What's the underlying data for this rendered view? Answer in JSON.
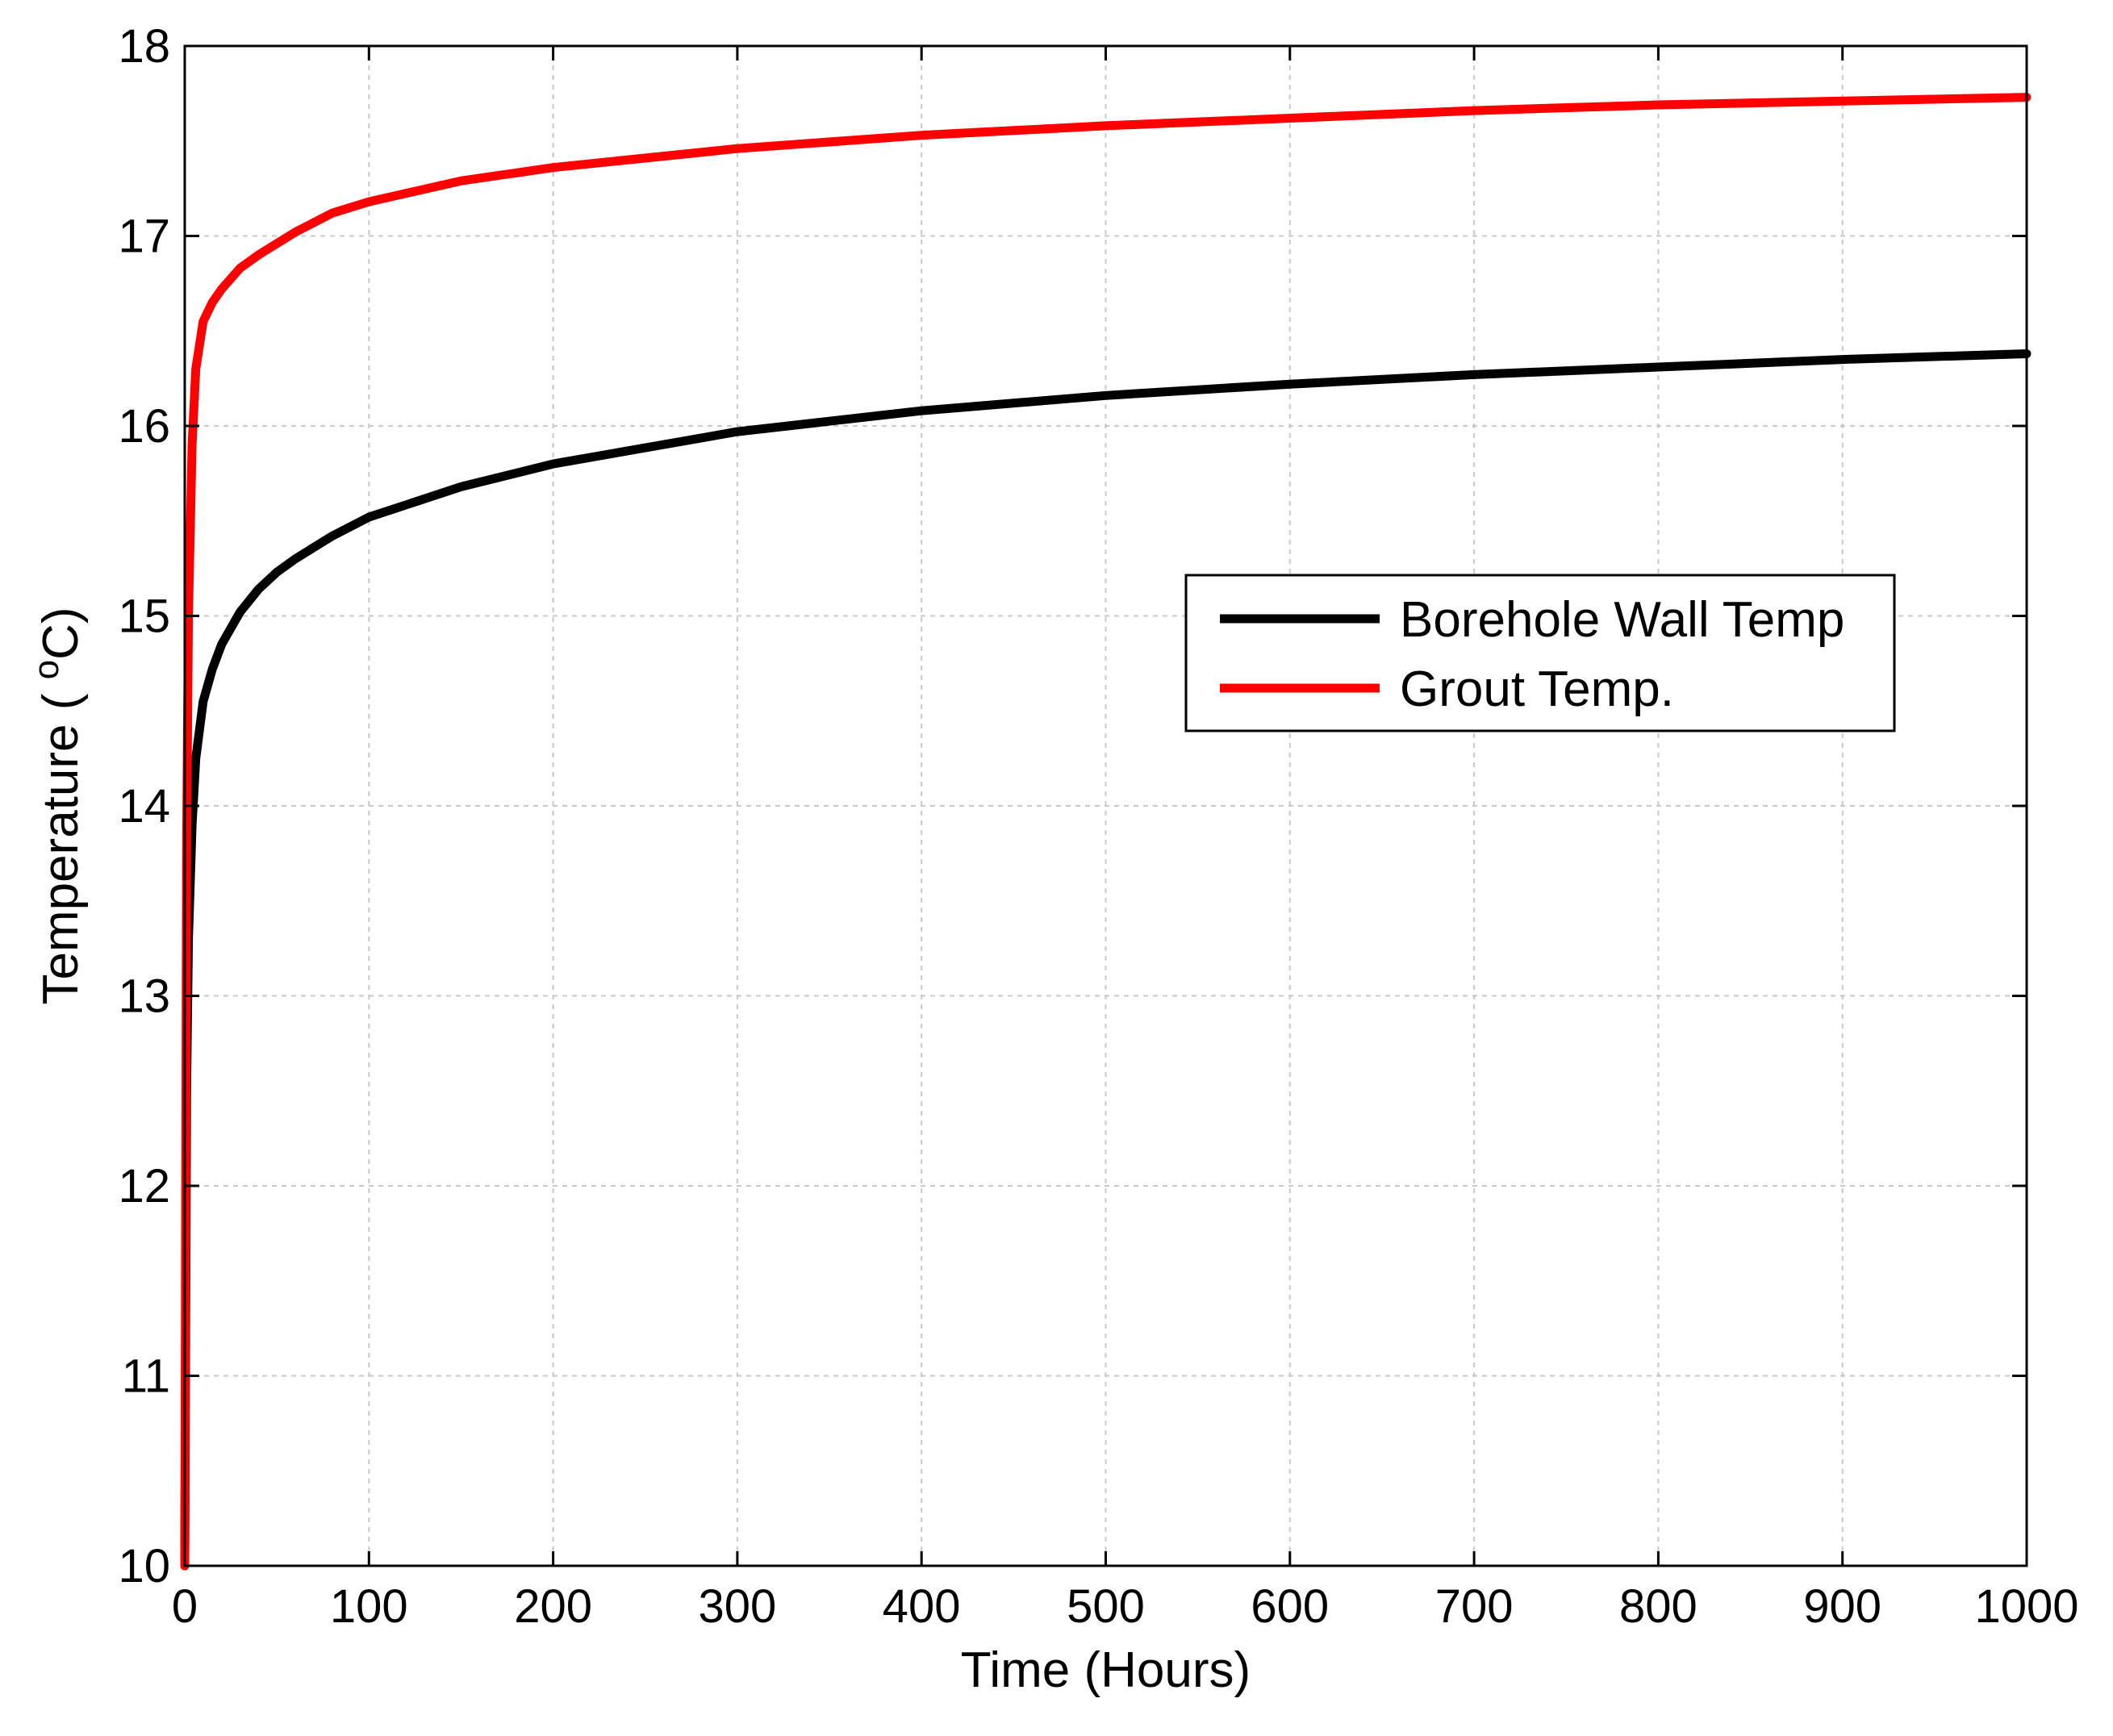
{
  "chart_data": {
    "type": "line",
    "title": "",
    "xlabel": "Time (Hours)",
    "ylabel_prefix": "Temperature ( ",
    "ylabel_sup": "o",
    "ylabel_suffix": "C)",
    "xlim": [
      0,
      1000
    ],
    "ylim": [
      10,
      18
    ],
    "xticks": [
      0,
      100,
      200,
      300,
      400,
      500,
      600,
      700,
      800,
      900,
      1000
    ],
    "yticks": [
      10,
      11,
      12,
      13,
      14,
      15,
      16,
      17,
      18
    ],
    "grid": true,
    "legend_position": "right",
    "series": [
      {
        "name": "Borehole Wall Temp",
        "color": "#000000",
        "x": [
          0,
          1,
          2,
          4,
          6,
          10,
          15,
          20,
          30,
          40,
          50,
          60,
          80,
          100,
          150,
          200,
          300,
          400,
          500,
          600,
          700,
          800,
          900,
          1000
        ],
        "y": [
          10.0,
          12.5,
          13.3,
          13.9,
          14.25,
          14.55,
          14.72,
          14.85,
          15.02,
          15.14,
          15.23,
          15.3,
          15.42,
          15.52,
          15.68,
          15.8,
          15.97,
          16.08,
          16.16,
          16.22,
          16.27,
          16.31,
          16.35,
          16.38
        ]
      },
      {
        "name": "Grout Temp.",
        "color": "#ff0000",
        "x": [
          0,
          1,
          2,
          4,
          6,
          10,
          15,
          20,
          30,
          40,
          50,
          60,
          80,
          100,
          150,
          200,
          300,
          400,
          500,
          600,
          700,
          800,
          900,
          1000
        ],
        "y": [
          10.0,
          13.8,
          15.0,
          15.9,
          16.3,
          16.55,
          16.65,
          16.72,
          16.83,
          16.9,
          16.96,
          17.02,
          17.12,
          17.18,
          17.29,
          17.36,
          17.46,
          17.53,
          17.58,
          17.62,
          17.66,
          17.69,
          17.71,
          17.73
        ]
      }
    ]
  }
}
